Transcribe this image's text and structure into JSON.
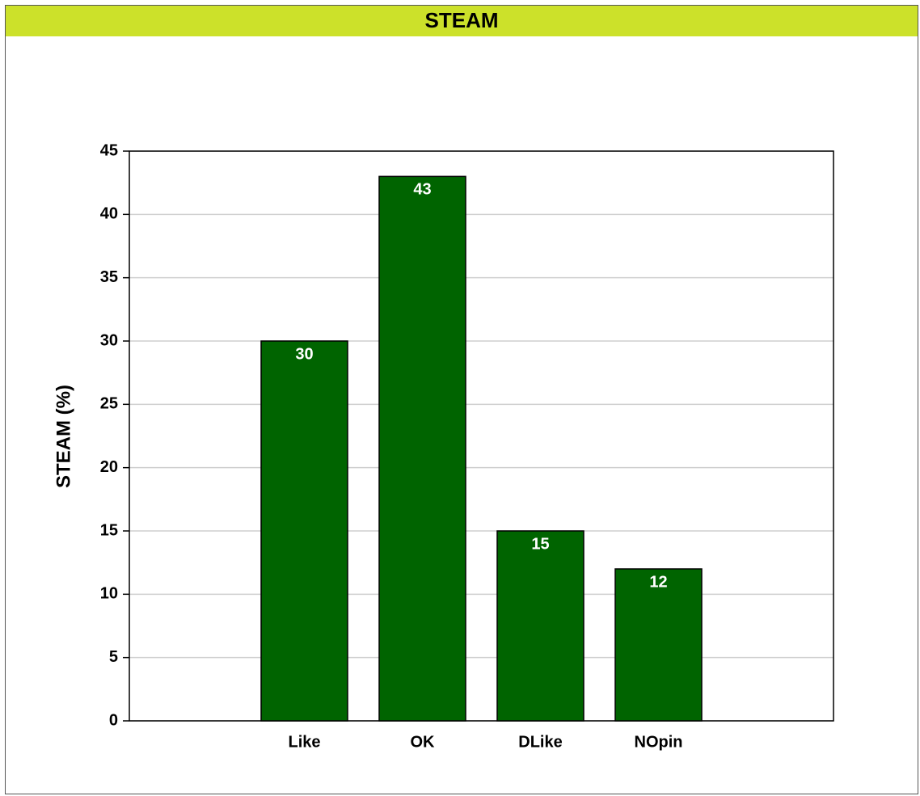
{
  "chart_data": {
    "type": "bar",
    "title": "STEAM",
    "ylabel": "STEAM  (%)",
    "categories": [
      "Like",
      "OK",
      "DLike",
      "NOpin"
    ],
    "values": [
      30,
      43,
      15,
      12
    ],
    "color": "#006400",
    "ylim": [
      0,
      45
    ],
    "yticks": [
      0,
      5,
      10,
      15,
      20,
      25,
      30,
      35,
      40,
      45
    ],
    "grid": true
  }
}
